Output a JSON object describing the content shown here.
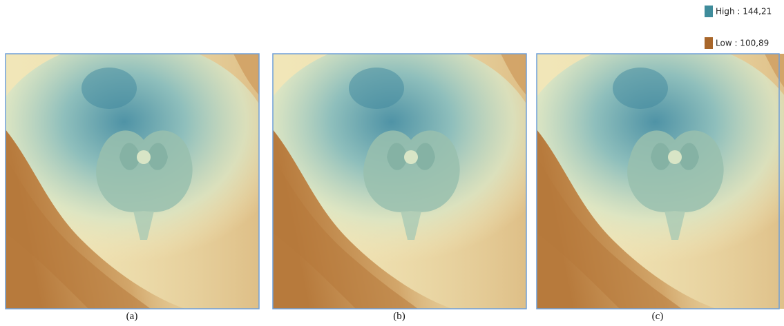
{
  "legend": {
    "high": "High : 144,21",
    "low": "Low : 100,89"
  },
  "panels": [
    {
      "caption": "(a)"
    },
    {
      "caption": "(b)"
    },
    {
      "caption": "(c)"
    }
  ]
}
